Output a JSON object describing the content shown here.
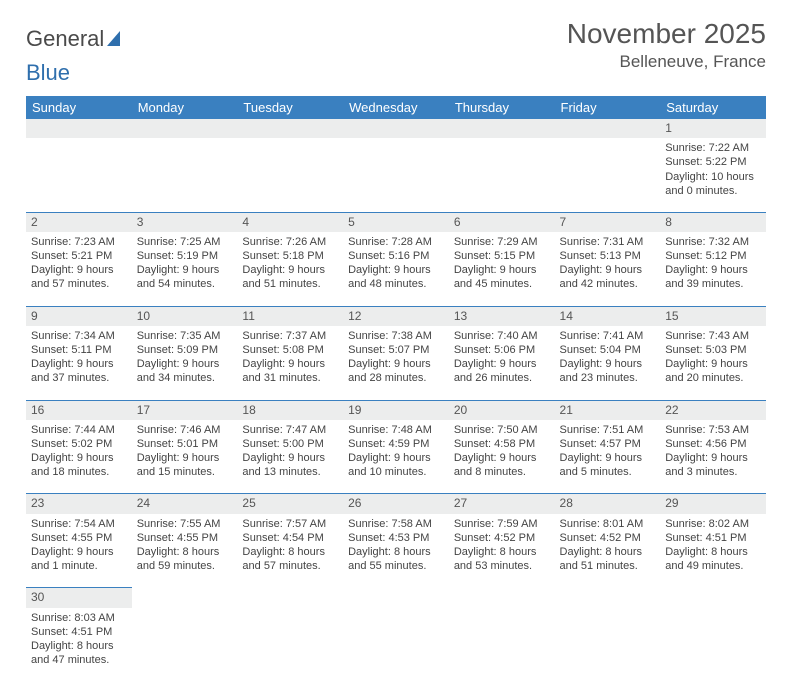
{
  "logo": {
    "text1": "General",
    "text2": "Blue"
  },
  "title": "November 2025",
  "location": "Belleneuve, France",
  "colors": {
    "header_bg": "#3a80c0",
    "header_fg": "#ffffff",
    "daynum_bg": "#eceded",
    "rule": "#3a80c0",
    "text": "#444444",
    "title": "#555555"
  },
  "weekdays": [
    "Sunday",
    "Monday",
    "Tuesday",
    "Wednesday",
    "Thursday",
    "Friday",
    "Saturday"
  ],
  "weeks": [
    [
      null,
      null,
      null,
      null,
      null,
      null,
      {
        "n": "1",
        "sr": "Sunrise: 7:22 AM",
        "ss": "Sunset: 5:22 PM",
        "dl": "Daylight: 10 hours and 0 minutes."
      }
    ],
    [
      {
        "n": "2",
        "sr": "Sunrise: 7:23 AM",
        "ss": "Sunset: 5:21 PM",
        "dl": "Daylight: 9 hours and 57 minutes."
      },
      {
        "n": "3",
        "sr": "Sunrise: 7:25 AM",
        "ss": "Sunset: 5:19 PM",
        "dl": "Daylight: 9 hours and 54 minutes."
      },
      {
        "n": "4",
        "sr": "Sunrise: 7:26 AM",
        "ss": "Sunset: 5:18 PM",
        "dl": "Daylight: 9 hours and 51 minutes."
      },
      {
        "n": "5",
        "sr": "Sunrise: 7:28 AM",
        "ss": "Sunset: 5:16 PM",
        "dl": "Daylight: 9 hours and 48 minutes."
      },
      {
        "n": "6",
        "sr": "Sunrise: 7:29 AM",
        "ss": "Sunset: 5:15 PM",
        "dl": "Daylight: 9 hours and 45 minutes."
      },
      {
        "n": "7",
        "sr": "Sunrise: 7:31 AM",
        "ss": "Sunset: 5:13 PM",
        "dl": "Daylight: 9 hours and 42 minutes."
      },
      {
        "n": "8",
        "sr": "Sunrise: 7:32 AM",
        "ss": "Sunset: 5:12 PM",
        "dl": "Daylight: 9 hours and 39 minutes."
      }
    ],
    [
      {
        "n": "9",
        "sr": "Sunrise: 7:34 AM",
        "ss": "Sunset: 5:11 PM",
        "dl": "Daylight: 9 hours and 37 minutes."
      },
      {
        "n": "10",
        "sr": "Sunrise: 7:35 AM",
        "ss": "Sunset: 5:09 PM",
        "dl": "Daylight: 9 hours and 34 minutes."
      },
      {
        "n": "11",
        "sr": "Sunrise: 7:37 AM",
        "ss": "Sunset: 5:08 PM",
        "dl": "Daylight: 9 hours and 31 minutes."
      },
      {
        "n": "12",
        "sr": "Sunrise: 7:38 AM",
        "ss": "Sunset: 5:07 PM",
        "dl": "Daylight: 9 hours and 28 minutes."
      },
      {
        "n": "13",
        "sr": "Sunrise: 7:40 AM",
        "ss": "Sunset: 5:06 PM",
        "dl": "Daylight: 9 hours and 26 minutes."
      },
      {
        "n": "14",
        "sr": "Sunrise: 7:41 AM",
        "ss": "Sunset: 5:04 PM",
        "dl": "Daylight: 9 hours and 23 minutes."
      },
      {
        "n": "15",
        "sr": "Sunrise: 7:43 AM",
        "ss": "Sunset: 5:03 PM",
        "dl": "Daylight: 9 hours and 20 minutes."
      }
    ],
    [
      {
        "n": "16",
        "sr": "Sunrise: 7:44 AM",
        "ss": "Sunset: 5:02 PM",
        "dl": "Daylight: 9 hours and 18 minutes."
      },
      {
        "n": "17",
        "sr": "Sunrise: 7:46 AM",
        "ss": "Sunset: 5:01 PM",
        "dl": "Daylight: 9 hours and 15 minutes."
      },
      {
        "n": "18",
        "sr": "Sunrise: 7:47 AM",
        "ss": "Sunset: 5:00 PM",
        "dl": "Daylight: 9 hours and 13 minutes."
      },
      {
        "n": "19",
        "sr": "Sunrise: 7:48 AM",
        "ss": "Sunset: 4:59 PM",
        "dl": "Daylight: 9 hours and 10 minutes."
      },
      {
        "n": "20",
        "sr": "Sunrise: 7:50 AM",
        "ss": "Sunset: 4:58 PM",
        "dl": "Daylight: 9 hours and 8 minutes."
      },
      {
        "n": "21",
        "sr": "Sunrise: 7:51 AM",
        "ss": "Sunset: 4:57 PM",
        "dl": "Daylight: 9 hours and 5 minutes."
      },
      {
        "n": "22",
        "sr": "Sunrise: 7:53 AM",
        "ss": "Sunset: 4:56 PM",
        "dl": "Daylight: 9 hours and 3 minutes."
      }
    ],
    [
      {
        "n": "23",
        "sr": "Sunrise: 7:54 AM",
        "ss": "Sunset: 4:55 PM",
        "dl": "Daylight: 9 hours and 1 minute."
      },
      {
        "n": "24",
        "sr": "Sunrise: 7:55 AM",
        "ss": "Sunset: 4:55 PM",
        "dl": "Daylight: 8 hours and 59 minutes."
      },
      {
        "n": "25",
        "sr": "Sunrise: 7:57 AM",
        "ss": "Sunset: 4:54 PM",
        "dl": "Daylight: 8 hours and 57 minutes."
      },
      {
        "n": "26",
        "sr": "Sunrise: 7:58 AM",
        "ss": "Sunset: 4:53 PM",
        "dl": "Daylight: 8 hours and 55 minutes."
      },
      {
        "n": "27",
        "sr": "Sunrise: 7:59 AM",
        "ss": "Sunset: 4:52 PM",
        "dl": "Daylight: 8 hours and 53 minutes."
      },
      {
        "n": "28",
        "sr": "Sunrise: 8:01 AM",
        "ss": "Sunset: 4:52 PM",
        "dl": "Daylight: 8 hours and 51 minutes."
      },
      {
        "n": "29",
        "sr": "Sunrise: 8:02 AM",
        "ss": "Sunset: 4:51 PM",
        "dl": "Daylight: 8 hours and 49 minutes."
      }
    ],
    [
      {
        "n": "30",
        "sr": "Sunrise: 8:03 AM",
        "ss": "Sunset: 4:51 PM",
        "dl": "Daylight: 8 hours and 47 minutes."
      },
      null,
      null,
      null,
      null,
      null,
      null
    ]
  ]
}
